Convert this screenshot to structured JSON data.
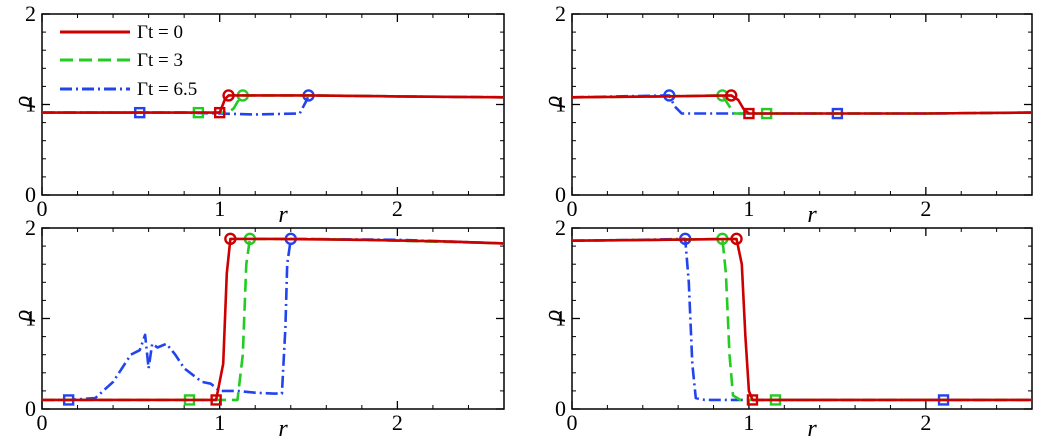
{
  "colors": {
    "gamma_t_0": "#cc0000",
    "gamma_t_3": "#22cc22",
    "gamma_t_6_5": "#2244ee"
  },
  "legend": {
    "entries": [
      {
        "label": "Γt = 0",
        "color": "#cc0000",
        "dash": "solid"
      },
      {
        "label": "Γt = 3",
        "color": "#22cc22",
        "dash": "dashed"
      },
      {
        "label": "Γt = 6.5",
        "color": "#2244ee",
        "dash": "dashdot"
      }
    ],
    "placement": "top-left of top-left panel"
  },
  "chart_data": [
    {
      "type": "line",
      "panel": "top-left",
      "xlabel": "r",
      "ylabel": "ρ",
      "xlim": [
        0,
        2.6
      ],
      "ylim": [
        0,
        2
      ],
      "xticks": [
        0,
        1,
        2
      ],
      "yticks": [
        0,
        1,
        2
      ],
      "grid": false,
      "series": [
        {
          "name": "Γt = 0",
          "x": [
            0,
            0.5,
            1.0,
            1.01,
            1.03,
            1.05,
            1.5,
            2.0,
            2.6
          ],
          "y": [
            0.91,
            0.91,
            0.91,
            0.96,
            1.06,
            1.1,
            1.1,
            1.09,
            1.08
          ],
          "markers": {
            "circle": [
              1.05,
              1.1
            ],
            "square": [
              1.0,
              0.91
            ]
          }
        },
        {
          "name": "Γt = 3",
          "x": [
            0,
            0.5,
            0.88,
            1.05,
            1.08,
            1.1,
            1.13,
            1.5,
            2.0,
            2.6
          ],
          "y": [
            0.91,
            0.91,
            0.91,
            0.91,
            0.96,
            1.03,
            1.1,
            1.1,
            1.09,
            1.08
          ],
          "markers": {
            "circle": [
              1.13,
              1.1
            ],
            "square": [
              0.88,
              0.91
            ]
          }
        },
        {
          "name": "Γt = 6.5",
          "x": [
            0,
            0.55,
            0.8,
            1.0,
            1.2,
            1.45,
            1.49,
            1.5,
            2.0,
            2.6
          ],
          "y": [
            0.91,
            0.91,
            0.91,
            0.9,
            0.89,
            0.9,
            1.05,
            1.1,
            1.09,
            1.08
          ],
          "markers": {
            "circle": [
              1.5,
              1.1
            ],
            "square": [
              0.55,
              0.91
            ]
          }
        }
      ]
    },
    {
      "type": "line",
      "panel": "top-right",
      "xlabel": "r",
      "ylabel": "ρ",
      "xlim": [
        0,
        2.6
      ],
      "ylim": [
        0,
        2
      ],
      "xticks": [
        0,
        1,
        2
      ],
      "yticks": [
        0,
        1,
        2
      ],
      "grid": false,
      "series": [
        {
          "name": "Γt = 0",
          "x": [
            0,
            0.5,
            0.9,
            0.94,
            0.97,
            1.0,
            1.5,
            2.0,
            2.6
          ],
          "y": [
            1.08,
            1.09,
            1.1,
            1.05,
            0.95,
            0.9,
            0.9,
            0.9,
            0.91
          ],
          "markers": {
            "circle": [
              0.9,
              1.1
            ],
            "square": [
              1.0,
              0.9
            ]
          }
        },
        {
          "name": "Γt = 3",
          "x": [
            0,
            0.5,
            0.85,
            0.87,
            0.9,
            0.92,
            1.1,
            1.5,
            2.0,
            2.6
          ],
          "y": [
            1.08,
            1.09,
            1.1,
            1.04,
            0.95,
            0.9,
            0.9,
            0.9,
            0.9,
            0.91
          ],
          "markers": {
            "circle": [
              0.85,
              1.1
            ],
            "square": [
              1.1,
              0.9
            ]
          }
        },
        {
          "name": "Γt = 6.5",
          "x": [
            0,
            0.55,
            0.58,
            0.62,
            0.8,
            1.0,
            1.5,
            2.0,
            2.6
          ],
          "y": [
            1.08,
            1.1,
            0.98,
            0.9,
            0.9,
            0.9,
            0.9,
            0.9,
            0.91
          ],
          "markers": {
            "circle": [
              0.55,
              1.1
            ],
            "square": [
              1.5,
              0.9
            ]
          }
        }
      ]
    },
    {
      "type": "line",
      "panel": "bottom-left",
      "xlabel": "r",
      "ylabel": "ρ",
      "xlim": [
        0,
        2.6
      ],
      "ylim": [
        0,
        2
      ],
      "xticks": [
        0,
        1,
        2
      ],
      "yticks": [
        0,
        1,
        2
      ],
      "grid": false,
      "series": [
        {
          "name": "Γt = 0",
          "x": [
            0,
            0.15,
            0.5,
            0.98,
            1.02,
            1.04,
            1.06,
            1.3,
            1.8,
            2.3,
            2.6
          ],
          "y": [
            0.1,
            0.1,
            0.1,
            0.1,
            0.5,
            1.5,
            1.88,
            1.88,
            1.87,
            1.85,
            1.83
          ],
          "markers": {
            "circle": [
              1.06,
              1.88
            ],
            "square": [
              0.98,
              0.1
            ]
          }
        },
        {
          "name": "Γt = 3",
          "x": [
            0,
            0.5,
            0.83,
            1.1,
            1.13,
            1.15,
            1.17,
            1.5,
            2.0,
            2.6
          ],
          "y": [
            0.1,
            0.1,
            0.1,
            0.1,
            0.6,
            1.6,
            1.88,
            1.88,
            1.86,
            1.83
          ],
          "markers": {
            "circle": [
              1.17,
              1.88
            ],
            "square": [
              0.83,
              0.1
            ]
          }
        },
        {
          "name": "Γt = 6.5",
          "x": [
            0,
            0.15,
            0.3,
            0.4,
            0.5,
            0.55,
            0.58,
            0.6,
            0.62,
            0.65,
            0.7,
            0.75,
            0.8,
            0.9,
            0.95,
            1.0,
            1.1,
            1.2,
            1.3,
            1.35,
            1.37,
            1.38,
            1.4,
            2.0,
            2.6
          ],
          "y": [
            0.1,
            0.1,
            0.12,
            0.3,
            0.6,
            0.65,
            0.82,
            0.45,
            0.72,
            0.68,
            0.72,
            0.6,
            0.45,
            0.3,
            0.28,
            0.2,
            0.2,
            0.18,
            0.17,
            0.17,
            0.9,
            1.6,
            1.88,
            1.87,
            1.83
          ],
          "markers": {
            "circle": [
              1.4,
              1.88
            ],
            "square": [
              0.15,
              0.1
            ]
          }
        }
      ]
    },
    {
      "type": "line",
      "panel": "bottom-right",
      "xlabel": "r",
      "ylabel": "ρ",
      "xlim": [
        0,
        2.6
      ],
      "ylim": [
        0,
        2
      ],
      "xticks": [
        0,
        1,
        2
      ],
      "yticks": [
        0,
        1,
        2
      ],
      "grid": false,
      "series": [
        {
          "name": "Γt = 0",
          "x": [
            0,
            0.5,
            0.93,
            0.96,
            0.98,
            1.0,
            1.02,
            1.5,
            2.0,
            2.6
          ],
          "y": [
            1.86,
            1.87,
            1.88,
            1.6,
            0.8,
            0.2,
            0.1,
            0.1,
            0.1,
            0.1
          ],
          "markers": {
            "circle": [
              0.93,
              1.88
            ],
            "square": [
              1.02,
              0.1
            ]
          }
        },
        {
          "name": "Γt = 3",
          "x": [
            0,
            0.5,
            0.85,
            0.87,
            0.89,
            0.91,
            0.95,
            1.15,
            2.0,
            2.6
          ],
          "y": [
            1.86,
            1.87,
            1.88,
            1.5,
            0.6,
            0.15,
            0.1,
            0.1,
            0.1,
            0.1
          ],
          "markers": {
            "circle": [
              0.85,
              1.88
            ],
            "square": [
              1.15,
              0.1
            ]
          }
        },
        {
          "name": "Γt = 6.5",
          "x": [
            0,
            0.4,
            0.64,
            0.66,
            0.68,
            0.7,
            0.75,
            1.0,
            2.1,
            2.6
          ],
          "y": [
            1.86,
            1.87,
            1.88,
            1.4,
            0.5,
            0.12,
            0.1,
            0.1,
            0.1,
            0.1
          ],
          "markers": {
            "circle": [
              0.64,
              1.88
            ],
            "square": [
              2.1,
              0.1
            ]
          }
        }
      ]
    }
  ]
}
